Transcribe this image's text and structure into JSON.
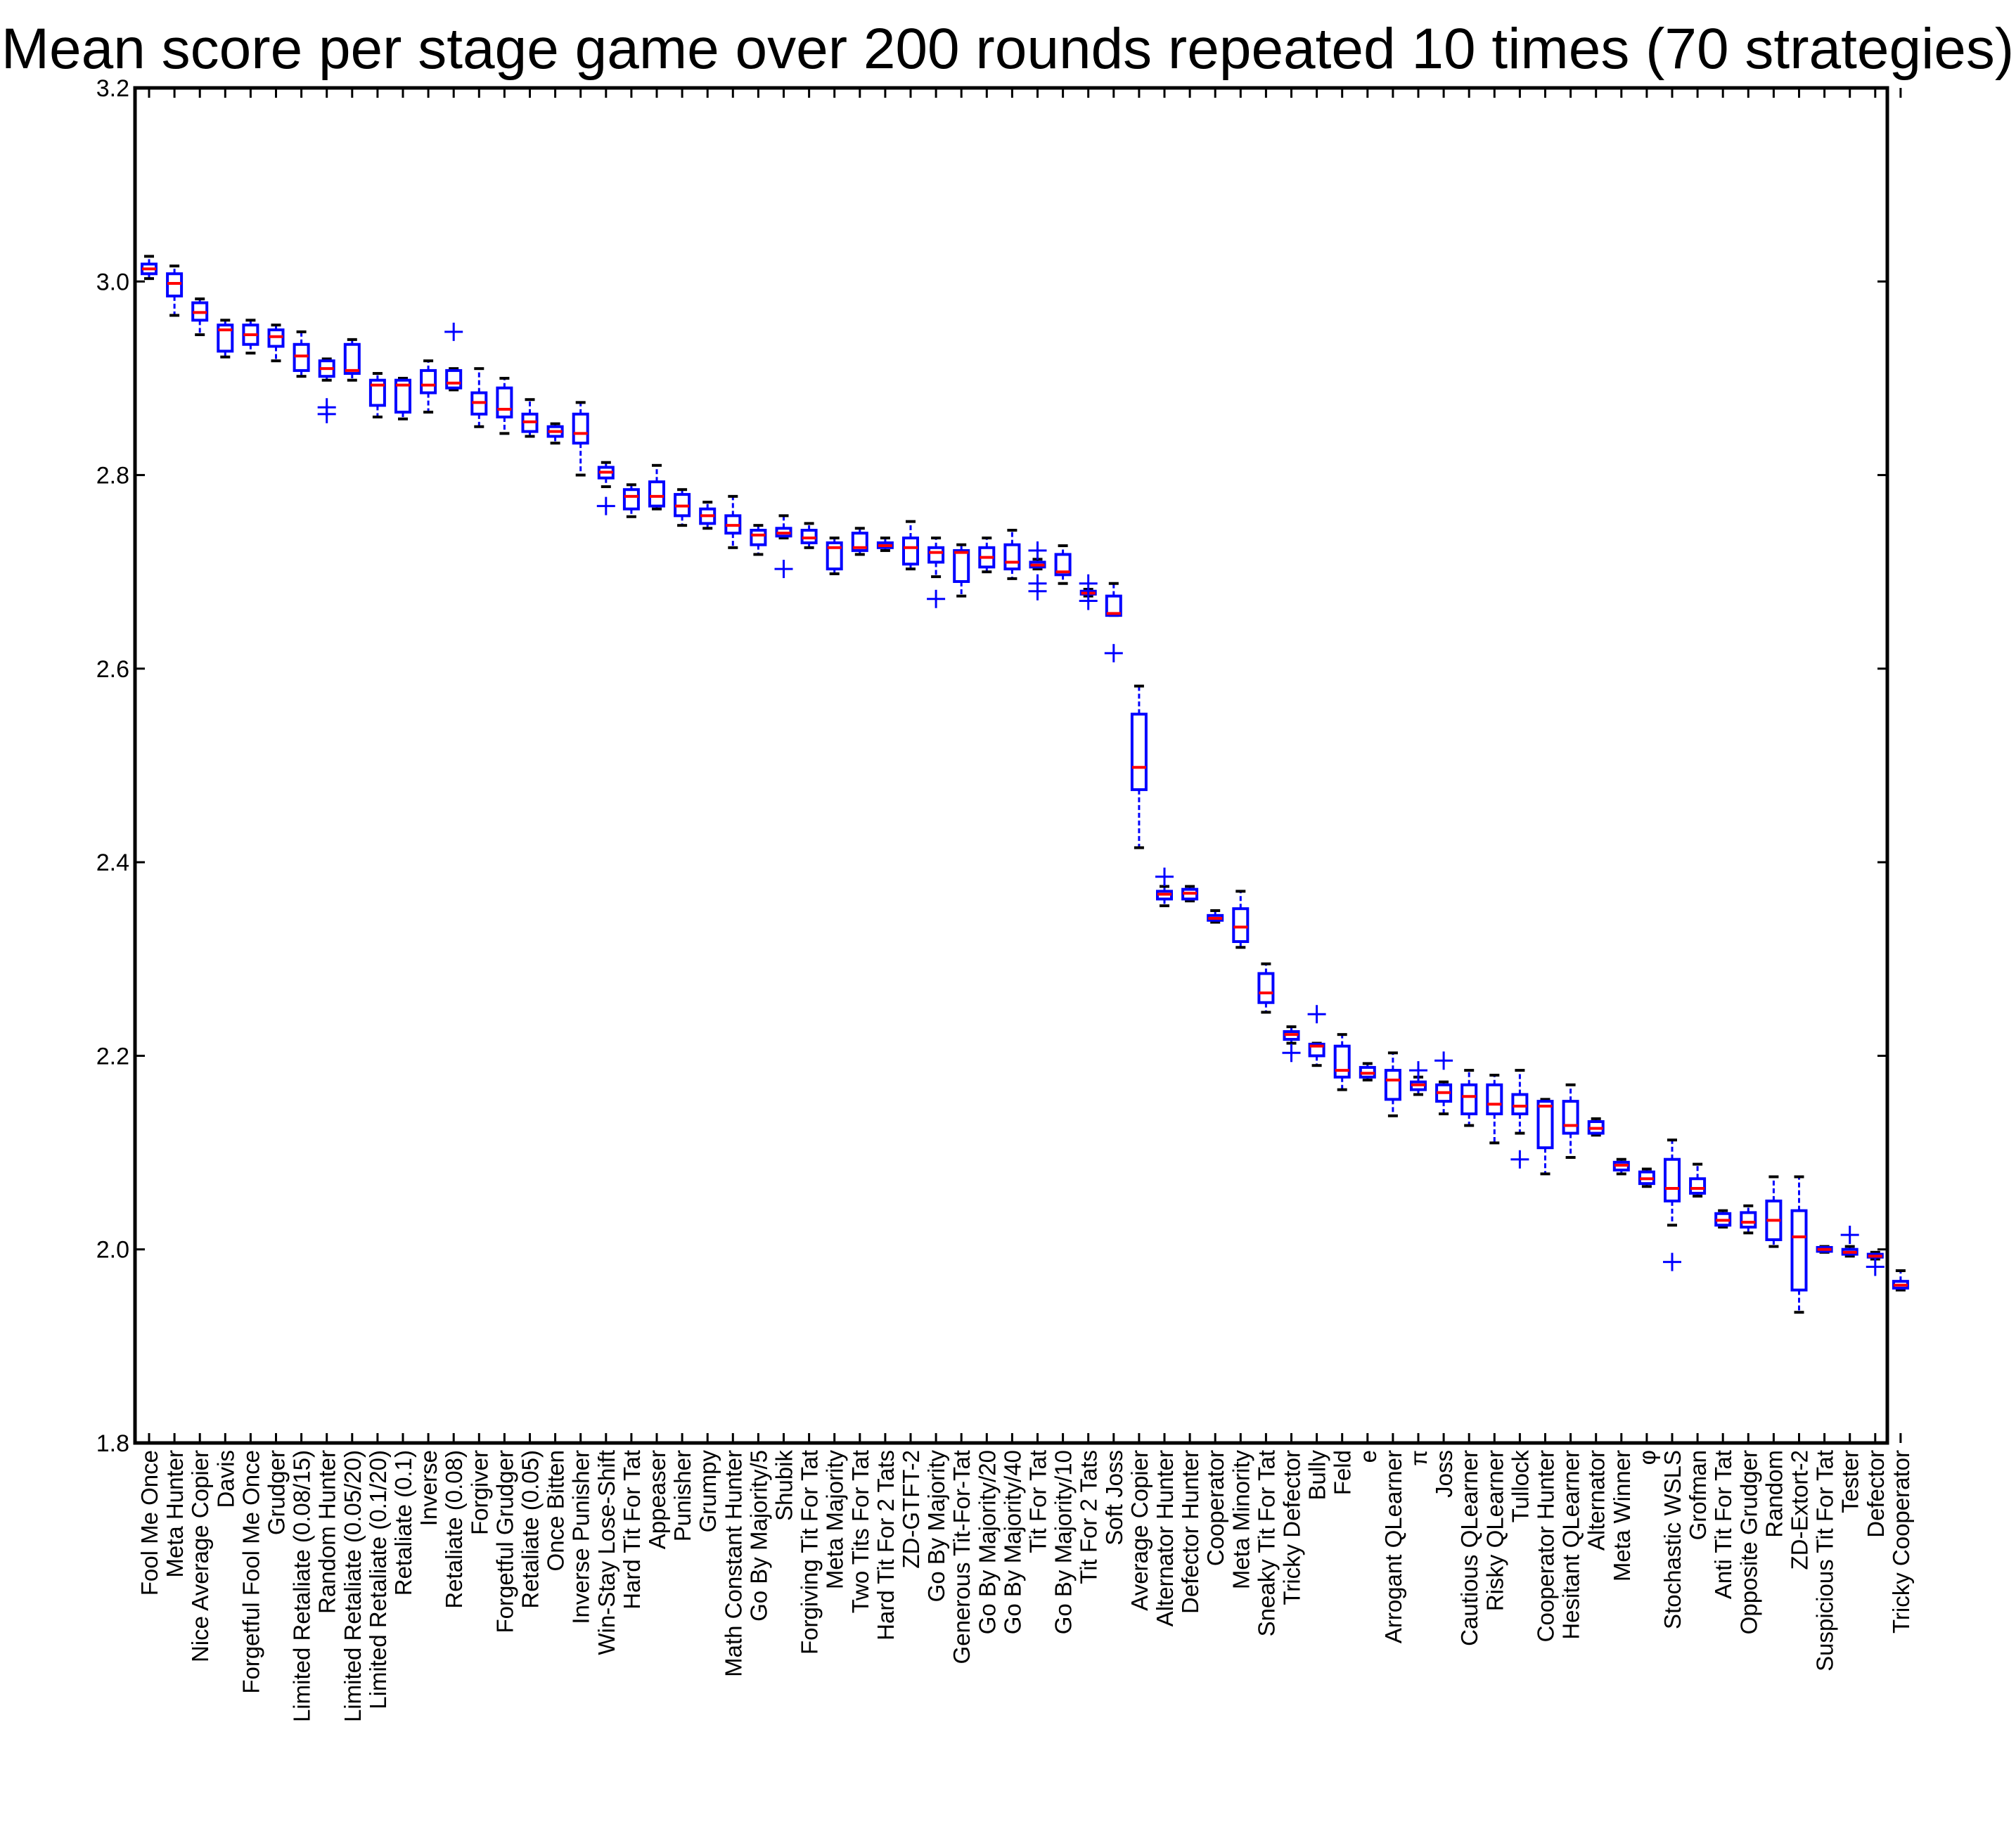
{
  "chart_data": {
    "type": "box",
    "title": "Mean score per stage game over 200 rounds repeated 10 times (70 strategies)",
    "xlabel": "",
    "ylabel": "",
    "ylim": [
      1.8,
      3.2
    ],
    "yticks": [
      "1.8",
      "2.0",
      "2.2",
      "2.4",
      "2.6",
      "2.8",
      "3.0",
      "3.2"
    ],
    "grid": false,
    "colors": {
      "box": "#0000ff",
      "median": "#ff0000",
      "whisker": "#000000",
      "flier": "#0000ff"
    },
    "categories": [
      "Fool Me Once",
      "Meta Hunter",
      "Nice Average Copier",
      "Davis",
      "Forgetful Fool Me Once",
      "Grudger",
      "Limited Retaliate (0.08/15)",
      "Random Hunter",
      "Limited Retaliate (0.05/20)",
      "Limited Retaliate (0.1/20)",
      "Retaliate (0.1)",
      "Inverse",
      "Retaliate (0.08)",
      "Forgiver",
      "Forgetful Grudger",
      "Retaliate (0.05)",
      "Once Bitten",
      "Inverse Punisher",
      "Win-Stay Lose-Shift",
      "Hard Tit For Tat",
      "Appeaser",
      "Punisher",
      "Grumpy",
      "Math Constant Hunter",
      "Go By Majority/5",
      "Shubik",
      "Forgiving Tit For Tat",
      "Meta Majority",
      "Two Tits For Tat",
      "Hard Tit For 2 Tats",
      "ZD-GTFT-2",
      "Go By Majority",
      "Generous Tit-For-Tat",
      "Go By Majority/20",
      "Go By Majority/40",
      "Tit For Tat",
      "Go By Majority/10",
      "Tit For 2 Tats",
      "Soft Joss",
      "Average Copier",
      "Alternator Hunter",
      "Defector Hunter",
      "Cooperator",
      "Meta Minority",
      "Sneaky Tit For Tat",
      "Tricky Defector",
      "Bully",
      "Feld",
      "e",
      "Arrogant QLearner",
      "π",
      "Joss",
      "Cautious QLearner",
      "Risky QLearner",
      "Tullock",
      "Cooperator Hunter",
      "Hesitant QLearner",
      "Alternator",
      "Meta Winner",
      "φ",
      "Stochastic WSLS",
      "Grofman",
      "Anti Tit For Tat",
      "Opposite Grudger",
      "Random",
      "ZD-Extort-2",
      "Suspicious Tit For Tat",
      "Tester",
      "Defector",
      "Tricky Cooperator"
    ],
    "series": [
      {
        "boxes": [
          {
            "whislo": 3.003,
            "q1": 3.008,
            "med": 3.013,
            "q3": 3.018,
            "whishi": 3.026,
            "fliers": []
          },
          {
            "whislo": 2.965,
            "q1": 2.985,
            "med": 2.998,
            "q3": 3.008,
            "whishi": 3.016,
            "fliers": []
          },
          {
            "whislo": 2.945,
            "q1": 2.96,
            "med": 2.968,
            "q3": 2.978,
            "whishi": 2.982,
            "fliers": []
          },
          {
            "whislo": 2.922,
            "q1": 2.928,
            "med": 2.95,
            "q3": 2.955,
            "whishi": 2.96,
            "fliers": []
          },
          {
            "whislo": 2.926,
            "q1": 2.935,
            "med": 2.945,
            "q3": 2.955,
            "whishi": 2.96,
            "fliers": []
          },
          {
            "whislo": 2.918,
            "q1": 2.933,
            "med": 2.943,
            "q3": 2.95,
            "whishi": 2.955,
            "fliers": []
          },
          {
            "whislo": 2.902,
            "q1": 2.908,
            "med": 2.923,
            "q3": 2.935,
            "whishi": 2.948,
            "fliers": []
          },
          {
            "whislo": 2.898,
            "q1": 2.902,
            "med": 2.91,
            "q3": 2.918,
            "whishi": 2.92,
            "fliers": [
              2.87,
              2.863
            ]
          },
          {
            "whislo": 2.898,
            "q1": 2.905,
            "med": 2.908,
            "q3": 2.935,
            "whishi": 2.94,
            "fliers": []
          },
          {
            "whislo": 2.86,
            "q1": 2.872,
            "med": 2.893,
            "q3": 2.898,
            "whishi": 2.905,
            "fliers": []
          },
          {
            "whislo": 2.858,
            "q1": 2.865,
            "med": 2.893,
            "q3": 2.898,
            "whishi": 2.9,
            "fliers": []
          },
          {
            "whislo": 2.865,
            "q1": 2.885,
            "med": 2.893,
            "q3": 2.908,
            "whishi": 2.918,
            "fliers": []
          },
          {
            "whislo": 2.888,
            "q1": 2.89,
            "med": 2.895,
            "q3": 2.908,
            "whishi": 2.91,
            "fliers": [
              2.948
            ]
          },
          {
            "whislo": 2.85,
            "q1": 2.863,
            "med": 2.875,
            "q3": 2.885,
            "whishi": 2.91,
            "fliers": []
          },
          {
            "whislo": 2.843,
            "q1": 2.86,
            "med": 2.868,
            "q3": 2.89,
            "whishi": 2.9,
            "fliers": []
          },
          {
            "whislo": 2.84,
            "q1": 2.845,
            "med": 2.855,
            "q3": 2.863,
            "whishi": 2.878,
            "fliers": []
          },
          {
            "whislo": 2.833,
            "q1": 2.84,
            "med": 2.845,
            "q3": 2.85,
            "whishi": 2.853,
            "fliers": []
          },
          {
            "whislo": 2.8,
            "q1": 2.833,
            "med": 2.843,
            "q3": 2.863,
            "whishi": 2.875,
            "fliers": []
          },
          {
            "whislo": 2.788,
            "q1": 2.797,
            "med": 2.803,
            "q3": 2.808,
            "whishi": 2.813,
            "fliers": [
              2.768
            ]
          },
          {
            "whislo": 2.757,
            "q1": 2.765,
            "med": 2.778,
            "q3": 2.785,
            "whishi": 2.79,
            "fliers": []
          },
          {
            "whislo": 2.765,
            "q1": 2.768,
            "med": 2.778,
            "q3": 2.793,
            "whishi": 2.81,
            "fliers": []
          },
          {
            "whislo": 2.748,
            "q1": 2.758,
            "med": 2.768,
            "q3": 2.78,
            "whishi": 2.785,
            "fliers": []
          },
          {
            "whislo": 2.745,
            "q1": 2.75,
            "med": 2.758,
            "q3": 2.765,
            "whishi": 2.772,
            "fliers": []
          },
          {
            "whislo": 2.725,
            "q1": 2.74,
            "med": 2.748,
            "q3": 2.758,
            "whishi": 2.778,
            "fliers": []
          },
          {
            "whislo": 2.718,
            "q1": 2.728,
            "med": 2.738,
            "q3": 2.743,
            "whishi": 2.748,
            "fliers": []
          },
          {
            "whislo": 2.735,
            "q1": 2.737,
            "med": 2.74,
            "q3": 2.745,
            "whishi": 2.758,
            "fliers": [
              2.703
            ]
          },
          {
            "whislo": 2.725,
            "q1": 2.73,
            "med": 2.735,
            "q3": 2.743,
            "whishi": 2.75,
            "fliers": []
          },
          {
            "whislo": 2.698,
            "q1": 2.703,
            "med": 2.725,
            "q3": 2.73,
            "whishi": 2.735,
            "fliers": []
          },
          {
            "whislo": 2.718,
            "q1": 2.722,
            "med": 2.725,
            "q3": 2.74,
            "whishi": 2.745,
            "fliers": []
          },
          {
            "whislo": 2.722,
            "q1": 2.725,
            "med": 2.727,
            "q3": 2.73,
            "whishi": 2.735,
            "fliers": []
          },
          {
            "whislo": 2.703,
            "q1": 2.708,
            "med": 2.725,
            "q3": 2.735,
            "whishi": 2.752,
            "fliers": []
          },
          {
            "whislo": 2.695,
            "q1": 2.71,
            "med": 2.72,
            "q3": 2.725,
            "whishi": 2.735,
            "fliers": [
              2.672
            ]
          },
          {
            "whislo": 2.675,
            "q1": 2.69,
            "med": 2.72,
            "q3": 2.722,
            "whishi": 2.728,
            "fliers": []
          },
          {
            "whislo": 2.7,
            "q1": 2.705,
            "med": 2.715,
            "q3": 2.725,
            "whishi": 2.735,
            "fliers": []
          },
          {
            "whislo": 2.693,
            "q1": 2.703,
            "med": 2.71,
            "q3": 2.728,
            "whishi": 2.743,
            "fliers": []
          },
          {
            "whislo": 2.703,
            "q1": 2.705,
            "med": 2.707,
            "q3": 2.71,
            "whishi": 2.713,
            "fliers": [
              2.722,
              2.688,
              2.68
            ]
          },
          {
            "whislo": 2.688,
            "q1": 2.697,
            "med": 2.7,
            "q3": 2.718,
            "whishi": 2.727,
            "fliers": []
          },
          {
            "whislo": 2.675,
            "q1": 2.677,
            "med": 2.678,
            "q3": 2.68,
            "whishi": 2.682,
            "fliers": [
              2.688,
              2.67
            ]
          },
          {
            "whislo": 2.655,
            "q1": 2.655,
            "med": 2.657,
            "q3": 2.675,
            "whishi": 2.688,
            "fliers": [
              2.616
            ]
          },
          {
            "whislo": 2.415,
            "q1": 2.475,
            "med": 2.498,
            "q3": 2.553,
            "whishi": 2.582,
            "fliers": []
          },
          {
            "whislo": 2.355,
            "q1": 2.362,
            "med": 2.367,
            "q3": 2.37,
            "whishi": 2.375,
            "fliers": [
              2.385
            ]
          },
          {
            "whislo": 2.36,
            "q1": 2.362,
            "med": 2.368,
            "q3": 2.372,
            "whishi": 2.375,
            "fliers": []
          },
          {
            "whislo": 2.338,
            "q1": 2.34,
            "med": 2.342,
            "q3": 2.345,
            "whishi": 2.35,
            "fliers": []
          },
          {
            "whislo": 2.312,
            "q1": 2.318,
            "med": 2.333,
            "q3": 2.352,
            "whishi": 2.37,
            "fliers": []
          },
          {
            "whislo": 2.245,
            "q1": 2.255,
            "med": 2.265,
            "q3": 2.285,
            "whishi": 2.295,
            "fliers": []
          },
          {
            "whislo": 2.213,
            "q1": 2.217,
            "med": 2.222,
            "q3": 2.225,
            "whishi": 2.23,
            "fliers": [
              2.203
            ]
          },
          {
            "whislo": 2.19,
            "q1": 2.2,
            "med": 2.21,
            "q3": 2.212,
            "whishi": 2.213,
            "fliers": [
              2.243
            ]
          },
          {
            "whislo": 2.165,
            "q1": 2.178,
            "med": 2.185,
            "q3": 2.21,
            "whishi": 2.222,
            "fliers": []
          },
          {
            "whislo": 2.175,
            "q1": 2.178,
            "med": 2.182,
            "q3": 2.188,
            "whishi": 2.192,
            "fliers": []
          },
          {
            "whislo": 2.138,
            "q1": 2.155,
            "med": 2.175,
            "q3": 2.185,
            "whishi": 2.203,
            "fliers": []
          },
          {
            "whislo": 2.16,
            "q1": 2.165,
            "med": 2.17,
            "q3": 2.173,
            "whishi": 2.178,
            "fliers": [
              2.185
            ]
          },
          {
            "whislo": 2.14,
            "q1": 2.153,
            "med": 2.162,
            "q3": 2.17,
            "whishi": 2.173,
            "fliers": [
              2.195
            ]
          },
          {
            "whislo": 2.128,
            "q1": 2.14,
            "med": 2.158,
            "q3": 2.17,
            "whishi": 2.185,
            "fliers": []
          },
          {
            "whislo": 2.11,
            "q1": 2.14,
            "med": 2.15,
            "q3": 2.17,
            "whishi": 2.18,
            "fliers": []
          },
          {
            "whislo": 2.12,
            "q1": 2.14,
            "med": 2.148,
            "q3": 2.16,
            "whishi": 2.185,
            "fliers": [
              2.093
            ]
          },
          {
            "whislo": 2.078,
            "q1": 2.105,
            "med": 2.148,
            "q3": 2.153,
            "whishi": 2.155,
            "fliers": []
          },
          {
            "whislo": 2.095,
            "q1": 2.12,
            "med": 2.128,
            "q3": 2.153,
            "whishi": 2.17,
            "fliers": []
          },
          {
            "whislo": 2.118,
            "q1": 2.12,
            "med": 2.125,
            "q3": 2.132,
            "whishi": 2.135,
            "fliers": []
          },
          {
            "whislo": 2.078,
            "q1": 2.082,
            "med": 2.087,
            "q3": 2.09,
            "whishi": 2.093,
            "fliers": []
          },
          {
            "whislo": 2.065,
            "q1": 2.068,
            "med": 2.073,
            "q3": 2.08,
            "whishi": 2.083,
            "fliers": []
          },
          {
            "whislo": 2.025,
            "q1": 2.05,
            "med": 2.063,
            "q3": 2.093,
            "whishi": 2.113,
            "fliers": [
              1.987
            ]
          },
          {
            "whislo": 2.055,
            "q1": 2.058,
            "med": 2.063,
            "q3": 2.073,
            "whishi": 2.088,
            "fliers": []
          },
          {
            "whislo": 2.023,
            "q1": 2.025,
            "med": 2.03,
            "q3": 2.037,
            "whishi": 2.04,
            "fliers": []
          },
          {
            "whislo": 2.017,
            "q1": 2.023,
            "med": 2.028,
            "q3": 2.038,
            "whishi": 2.045,
            "fliers": []
          },
          {
            "whislo": 2.003,
            "q1": 2.01,
            "med": 2.03,
            "q3": 2.05,
            "whishi": 2.075,
            "fliers": []
          },
          {
            "whislo": 1.935,
            "q1": 1.958,
            "med": 2.013,
            "q3": 2.04,
            "whishi": 2.075,
            "fliers": []
          },
          {
            "whislo": 1.997,
            "q1": 1.998,
            "med": 2.0,
            "q3": 2.002,
            "whishi": 2.003,
            "fliers": []
          },
          {
            "whislo": 1.993,
            "q1": 1.995,
            "med": 1.997,
            "q3": 2.0,
            "whishi": 2.003,
            "fliers": [
              2.015
            ]
          },
          {
            "whislo": 1.99,
            "q1": 1.992,
            "med": 1.993,
            "q3": 1.995,
            "whishi": 1.997,
            "fliers": [
              1.982
            ]
          },
          {
            "whislo": 1.958,
            "q1": 1.96,
            "med": 1.963,
            "q3": 1.967,
            "whishi": 1.978,
            "fliers": []
          }
        ]
      }
    ]
  }
}
